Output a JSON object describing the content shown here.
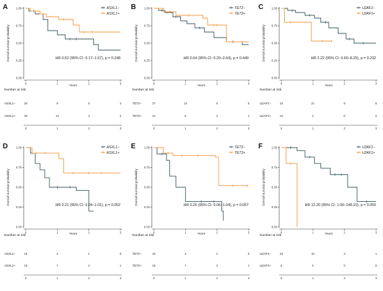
{
  "chart_data": [
    {
      "id": "A",
      "type": "line",
      "subtype": "kaplan-meier",
      "ylabel": "Overall survival probability",
      "xlabel": "Years",
      "xlim": [
        0,
        3
      ],
      "ylim": [
        0,
        1
      ],
      "xticks": [
        "0",
        "1",
        "2",
        "3"
      ],
      "yticks": [
        "0.00",
        "0.25",
        "0.50",
        "0.75",
        "1.00"
      ],
      "hr_text": "HR 0.52 (95% CI: 0.17–1.57), p = 0.248",
      "risk_title": "Number at risk",
      "series": [
        {
          "name": "ASXL1−",
          "color": "#3d5a60",
          "steps": [
            [
              0,
              1
            ],
            [
              0.1,
              0.96
            ],
            [
              0.3,
              0.92
            ],
            [
              0.55,
              0.84
            ],
            [
              0.7,
              0.68
            ],
            [
              1.0,
              0.62
            ],
            [
              1.25,
              0.56
            ],
            [
              2.15,
              0.48
            ],
            [
              2.3,
              0.4
            ],
            [
              3,
              0.4
            ]
          ],
          "censors": [
            [
              0.25,
              0.96
            ],
            [
              1.4,
              0.56
            ],
            [
              1.6,
              0.56
            ]
          ],
          "risk": [
            "25",
            "9",
            "5",
            "4"
          ]
        },
        {
          "name": "ASXL1+",
          "color": "#f39a3e",
          "steps": [
            [
              0,
              1
            ],
            [
              0.15,
              0.96
            ],
            [
              0.45,
              0.92
            ],
            [
              0.65,
              0.88
            ],
            [
              1.05,
              0.84
            ],
            [
              1.5,
              0.76
            ],
            [
              1.7,
              0.66
            ],
            [
              3,
              0.66
            ]
          ],
          "censors": [
            [
              0.3,
              0.96
            ],
            [
              1.2,
              0.84
            ],
            [
              1.85,
              0.66
            ],
            [
              2.1,
              0.66
            ]
          ],
          "risk": [
            "26",
            "14",
            "3",
            "2"
          ]
        }
      ]
    },
    {
      "id": "B",
      "type": "line",
      "subtype": "kaplan-meier",
      "ylabel": "Overall survival probability",
      "xlabel": "Years",
      "xlim": [
        0,
        3
      ],
      "ylim": [
        0,
        1
      ],
      "xticks": [
        "0",
        "1",
        "2",
        "3"
      ],
      "yticks": [
        "0.00",
        "0.25",
        "0.50",
        "0.75",
        "1.00"
      ],
      "hr_text": "HR 0.64 (95% CI: 0.20–2.64), p = 0.449",
      "risk_title": "Number at risk",
      "series": [
        {
          "name": "TET2−",
          "color": "#3d5a60",
          "steps": [
            [
              0,
              1
            ],
            [
              0.15,
              0.97
            ],
            [
              0.35,
              0.94
            ],
            [
              0.6,
              0.88
            ],
            [
              0.85,
              0.82
            ],
            [
              1.05,
              0.78
            ],
            [
              1.3,
              0.72
            ],
            [
              1.6,
              0.66
            ],
            [
              1.9,
              0.58
            ],
            [
              2.3,
              0.52
            ],
            [
              2.8,
              0.48
            ],
            [
              3,
              0.48
            ]
          ],
          "censors": [
            [
              0.25,
              0.97
            ],
            [
              0.7,
              0.88
            ],
            [
              1.45,
              0.72
            ],
            [
              2.5,
              0.52
            ]
          ],
          "risk": [
            "37",
            "14",
            "6",
            "5"
          ]
        },
        {
          "name": "TET2+",
          "color": "#f39a3e",
          "steps": [
            [
              0,
              1
            ],
            [
              0.3,
              0.95
            ],
            [
              0.7,
              0.9
            ],
            [
              1.55,
              0.86
            ],
            [
              1.7,
              0.76
            ],
            [
              2.3,
              0.52
            ],
            [
              3,
              0.52
            ]
          ],
          "censors": [
            [
              0.5,
              0.95
            ],
            [
              1.1,
              0.9
            ],
            [
              1.9,
              0.76
            ],
            [
              2.0,
              0.76
            ]
          ],
          "risk": [
            "21",
            "6",
            "2",
            "1"
          ]
        }
      ]
    },
    {
      "id": "C",
      "type": "line",
      "subtype": "kaplan-meier",
      "ylabel": "Overall survival probability",
      "xlabel": "Years",
      "xlim": [
        0,
        3
      ],
      "ylim": [
        0,
        1
      ],
      "xticks": [
        "0",
        "1",
        "2",
        "3"
      ],
      "yticks": [
        "0.00",
        "0.25",
        "0.50",
        "0.75",
        "1.00"
      ],
      "hr_text": "HR 2.22 (95% CI: 0.60–8.25), p = 0.232",
      "risk_title": "Number at risk",
      "series": [
        {
          "name": "U2AF1−",
          "color": "#3d5a60",
          "steps": [
            [
              0,
              1
            ],
            [
              0.2,
              0.97
            ],
            [
              0.45,
              0.94
            ],
            [
              0.75,
              0.9
            ],
            [
              1.05,
              0.86
            ],
            [
              1.25,
              0.8
            ],
            [
              1.5,
              0.72
            ],
            [
              1.8,
              0.64
            ],
            [
              2.05,
              0.56
            ],
            [
              2.3,
              0.5
            ],
            [
              3,
              0.5
            ]
          ],
          "censors": [
            [
              0.35,
              0.97
            ],
            [
              0.9,
              0.9
            ],
            [
              1.4,
              0.8
            ],
            [
              2.15,
              0.56
            ],
            [
              2.6,
              0.5
            ]
          ],
          "risk": [
            "43",
            "21",
            "8",
            "6"
          ]
        },
        {
          "name": "U2AF1+",
          "color": "#f39a3e",
          "steps": [
            [
              0,
              1
            ],
            [
              0.1,
              0.8
            ],
            [
              0.85,
              0.8
            ],
            [
              0.95,
              0.53
            ],
            [
              1.6,
              0.53
            ]
          ],
          "censors": [
            [
              0.3,
              0.8
            ],
            [
              1.3,
              0.53
            ],
            [
              1.6,
              0.53
            ]
          ],
          "risk": [
            "10",
            "2",
            "0",
            "0"
          ]
        }
      ]
    },
    {
      "id": "D",
      "type": "line",
      "subtype": "kaplan-meier",
      "ylabel": "Overall survival probability",
      "xlabel": "Years",
      "xlim": [
        0,
        3
      ],
      "ylim": [
        0,
        1
      ],
      "xticks": [
        "0",
        "1",
        "2",
        "3"
      ],
      "yticks": [
        "0.00",
        "0.25",
        "0.50",
        "0.75",
        "1.00"
      ],
      "hr_text": "HR 0.21 (95% CI: 0.04–1.01), p = 0.052",
      "risk_title": "Number at risk",
      "series": [
        {
          "name": "ASXL1−",
          "color": "#3d5a60",
          "steps": [
            [
              0,
              1
            ],
            [
              0.15,
              0.93
            ],
            [
              0.3,
              0.8
            ],
            [
              0.45,
              0.72
            ],
            [
              0.6,
              0.62
            ],
            [
              0.75,
              0.5
            ],
            [
              1.25,
              0.5
            ],
            [
              1.6,
              0.46
            ],
            [
              2.0,
              0.2
            ],
            [
              2.15,
              0.2
            ]
          ],
          "censors": [
            [
              0.2,
              0.93
            ],
            [
              1.0,
              0.5
            ],
            [
              1.4,
              0.5
            ]
          ],
          "risk": [
            "15",
            "3",
            "1",
            "0"
          ]
        },
        {
          "name": "ASXL1+",
          "color": "#f39a3e",
          "steps": [
            [
              0,
              1
            ],
            [
              0.2,
              0.93
            ],
            [
              1.05,
              0.86
            ],
            [
              1.2,
              0.68
            ],
            [
              3,
              0.68
            ]
          ],
          "censors": [
            [
              0.35,
              0.93
            ],
            [
              0.6,
              0.93
            ],
            [
              1.5,
              0.68
            ],
            [
              2.0,
              0.68
            ],
            [
              2.4,
              0.68
            ]
          ],
          "risk": [
            "15",
            "7",
            "2",
            "1"
          ]
        }
      ]
    },
    {
      "id": "E",
      "type": "line",
      "subtype": "kaplan-meier",
      "ylabel": "Overall survival probability",
      "xlabel": "Years",
      "xlim": [
        0,
        3
      ],
      "ylim": [
        0,
        1
      ],
      "xticks": [
        "0",
        "1",
        "2",
        "3"
      ],
      "yticks": [
        "0.00",
        "0.25",
        "0.50",
        "0.75",
        "1.00"
      ],
      "hr_text": "HR 0.25 (95% CI: 0.06–1.04), p = 0.057",
      "risk_title": "Number at risk",
      "series": [
        {
          "name": "TET2−",
          "color": "#3d5a60",
          "steps": [
            [
              0,
              1
            ],
            [
              0.1,
              0.92
            ],
            [
              0.4,
              0.84
            ],
            [
              0.5,
              0.64
            ],
            [
              0.7,
              0.5
            ],
            [
              1.0,
              0.32
            ],
            [
              2.15,
              0.2
            ],
            [
              2.2,
              0.08
            ],
            [
              2.2,
              0.08
            ]
          ],
          "censors": [
            [
              0.25,
              0.92
            ],
            [
              1.5,
              0.32
            ],
            [
              1.9,
              0.32
            ]
          ],
          "risk": [
            "15",
            "3",
            "1",
            "0"
          ]
        },
        {
          "name": "TET2+",
          "color": "#f39a3e",
          "steps": [
            [
              0,
              1
            ],
            [
              0.3,
              0.93
            ],
            [
              0.6,
              0.9
            ],
            [
              1.95,
              0.88
            ],
            [
              2.05,
              0.52
            ],
            [
              3,
              0.52
            ]
          ],
          "censors": [
            [
              0.45,
              0.93
            ],
            [
              0.9,
              0.9
            ],
            [
              1.4,
              0.9
            ],
            [
              2.5,
              0.52
            ],
            [
              2.95,
              0.52
            ]
          ],
          "risk": [
            "15",
            "7",
            "2",
            "1"
          ]
        }
      ]
    },
    {
      "id": "F",
      "type": "line",
      "subtype": "kaplan-meier",
      "ylabel": "Overall survival probability",
      "xlabel": "Years",
      "xlim": [
        0,
        3
      ],
      "ylim": [
        0,
        1
      ],
      "xticks": [
        "0",
        "1",
        "2",
        "3"
      ],
      "yticks": [
        "0.00",
        "0.25",
        "0.50",
        "0.75",
        "1.00"
      ],
      "hr_text": "HR 12.20 (95% CI: 1.00–148.10), p = 0.050",
      "risk_title": "Number at risk",
      "series": [
        {
          "name": "U2AF1−",
          "color": "#3d5a60",
          "steps": [
            [
              0,
              1
            ],
            [
              0.5,
              0.96
            ],
            [
              0.75,
              0.88
            ],
            [
              1.05,
              0.8
            ],
            [
              1.25,
              0.74
            ],
            [
              1.55,
              0.66
            ],
            [
              2.1,
              0.5
            ],
            [
              2.4,
              0.32
            ],
            [
              3,
              0.32
            ]
          ],
          "censors": [
            [
              0.3,
              1
            ],
            [
              0.9,
              0.88
            ],
            [
              1.7,
              0.66
            ],
            [
              1.9,
              0.66
            ],
            [
              2.7,
              0.32
            ]
          ],
          "risk": [
            "24",
            "10",
            "3",
            "1"
          ]
        },
        {
          "name": "U2AF1+",
          "color": "#f39a3e",
          "steps": [
            [
              0,
              1
            ],
            [
              0.15,
              0.8
            ],
            [
              0.45,
              0.8
            ],
            [
              0.5,
              0.0
            ]
          ],
          "censors": [
            [
              0.3,
              0.8
            ]
          ],
          "risk": [
            "6",
            "0",
            "0",
            "0"
          ]
        }
      ]
    }
  ]
}
